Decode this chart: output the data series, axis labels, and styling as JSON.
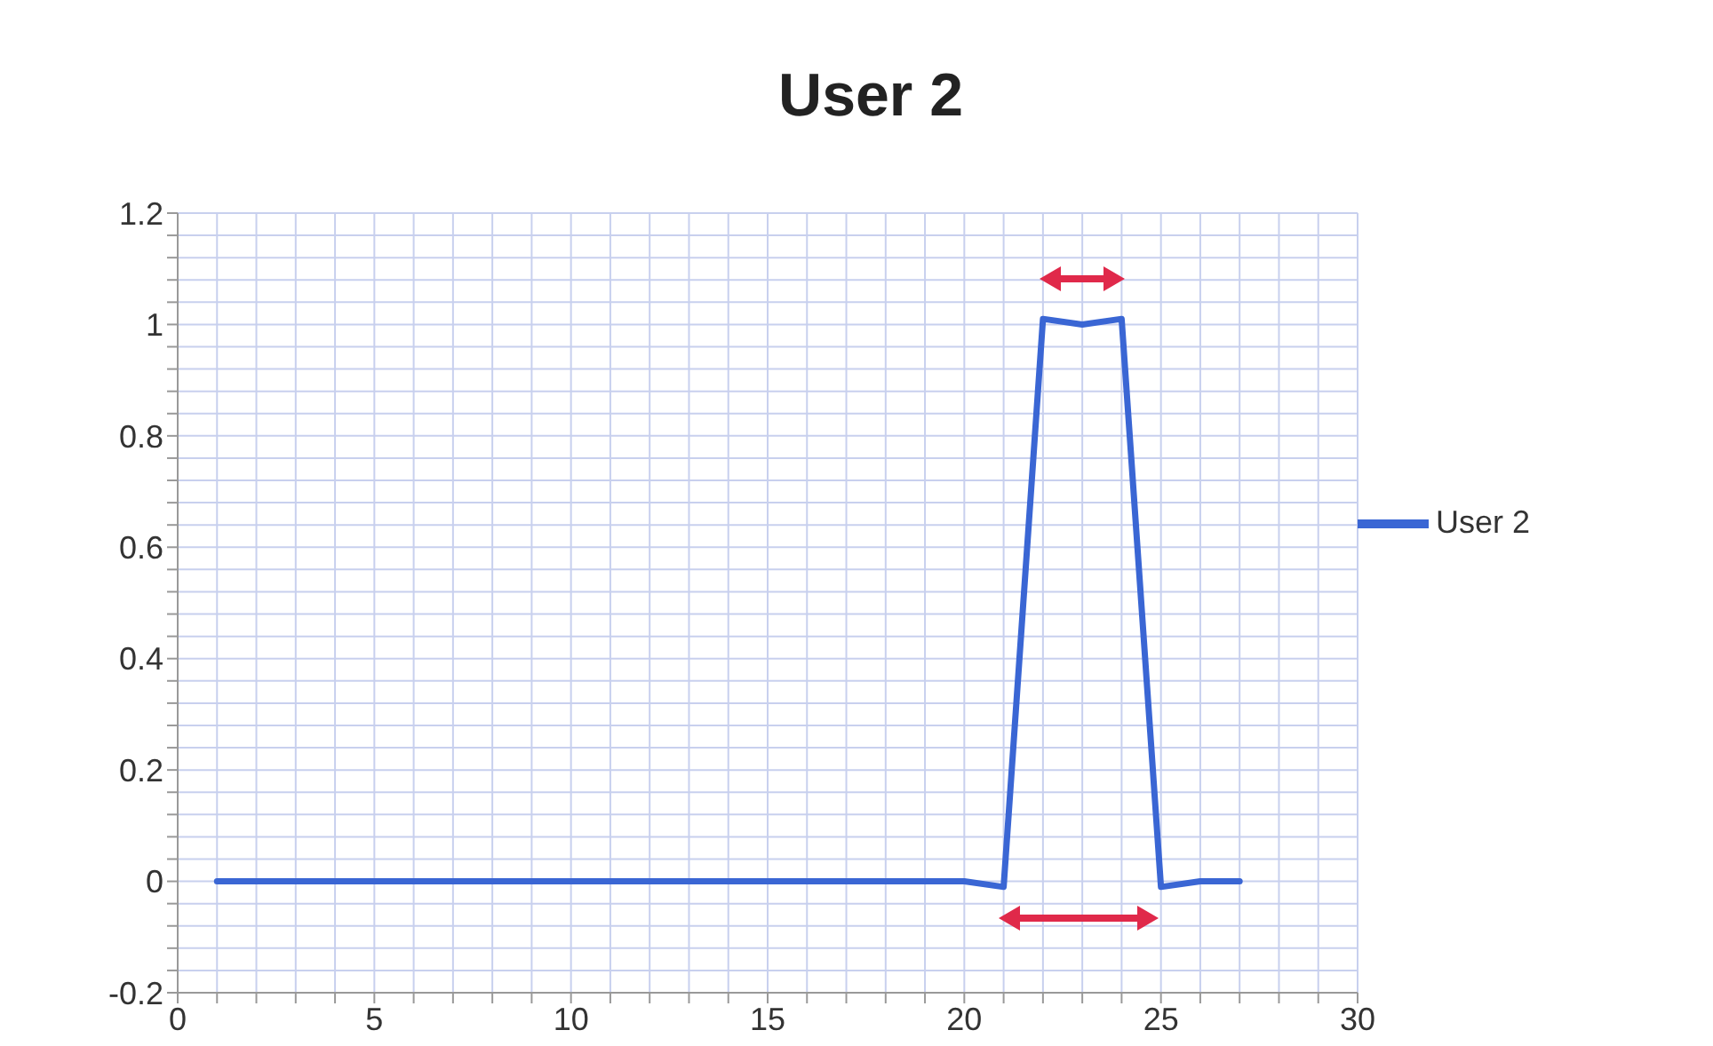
{
  "chart_data": {
    "type": "line",
    "title": "User 2",
    "x": [
      1,
      2,
      3,
      4,
      5,
      6,
      7,
      8,
      9,
      10,
      11,
      12,
      13,
      14,
      15,
      16,
      17,
      18,
      19,
      20,
      21,
      22,
      23,
      24,
      25,
      26,
      27
    ],
    "series": [
      {
        "name": "User 2",
        "color": "#3a66d4",
        "values": [
          0,
          0,
          0,
          0,
          0,
          0,
          0,
          0,
          0,
          0,
          0,
          0,
          0,
          0,
          0,
          0,
          0,
          0,
          0,
          0,
          -0.01,
          1.01,
          1.0,
          1.01,
          -0.01,
          0,
          0
        ]
      }
    ],
    "xlim": [
      0,
      30
    ],
    "xticks": [
      0,
      {
        "value": 1,
        "label": null
      },
      {
        "value": 2,
        "label": null
      },
      {
        "value": 3,
        "label": null
      },
      {
        "value": 4,
        "label": null
      },
      5,
      {
        "value": 6,
        "label": null
      },
      {
        "value": 7,
        "label": null
      },
      {
        "value": 8,
        "label": null
      },
      {
        "value": 9,
        "label": null
      },
      10,
      {
        "value": 11,
        "label": null
      },
      {
        "value": 12,
        "label": null
      },
      {
        "value": 13,
        "label": null
      },
      {
        "value": 14,
        "label": null
      },
      15,
      {
        "value": 16,
        "label": null
      },
      {
        "value": 17,
        "label": null
      },
      {
        "value": 18,
        "label": null
      },
      {
        "value": 19,
        "label": null
      },
      20,
      {
        "value": 21,
        "label": null
      },
      {
        "value": 22,
        "label": null
      },
      {
        "value": 23,
        "label": null
      },
      {
        "value": 24,
        "label": null
      },
      25,
      {
        "value": 26,
        "label": null
      },
      {
        "value": 27,
        "label": null
      },
      {
        "value": 28,
        "label": null
      },
      {
        "value": 29,
        "label": null
      },
      30
    ],
    "ylim": [
      -0.2,
      1.2
    ],
    "yticks": [
      -0.2,
      {
        "value": -0.16,
        "label": null
      },
      {
        "value": -0.12,
        "label": null
      },
      {
        "value": -0.08,
        "label": null
      },
      {
        "value": -0.04,
        "label": null
      },
      0,
      {
        "value": 0.04,
        "label": null
      },
      {
        "value": 0.08,
        "label": null
      },
      {
        "value": 0.12,
        "label": null
      },
      {
        "value": 0.16,
        "label": null
      },
      0.2,
      {
        "value": 0.24,
        "label": null
      },
      {
        "value": 0.28,
        "label": null
      },
      {
        "value": 0.32,
        "label": null
      },
      {
        "value": 0.36,
        "label": null
      },
      0.4,
      {
        "value": 0.44,
        "label": null
      },
      {
        "value": 0.48,
        "label": null
      },
      {
        "value": 0.52,
        "label": null
      },
      {
        "value": 0.56,
        "label": null
      },
      0.6,
      {
        "value": 0.64,
        "label": null
      },
      {
        "value": 0.68,
        "label": null
      },
      {
        "value": 0.72,
        "label": null
      },
      {
        "value": 0.76,
        "label": null
      },
      0.8,
      {
        "value": 0.84,
        "label": null
      },
      {
        "value": 0.88,
        "label": null
      },
      {
        "value": 0.92,
        "label": null
      },
      {
        "value": 0.96,
        "label": null
      },
      1,
      {
        "value": 1.04,
        "label": null
      },
      {
        "value": 1.08,
        "label": null
      },
      {
        "value": 1.12,
        "label": null
      },
      {
        "value": 1.16,
        "label": null
      },
      1.2
    ],
    "grid": true,
    "legend": "right",
    "marker": "none",
    "line_style": "solid"
  }
}
